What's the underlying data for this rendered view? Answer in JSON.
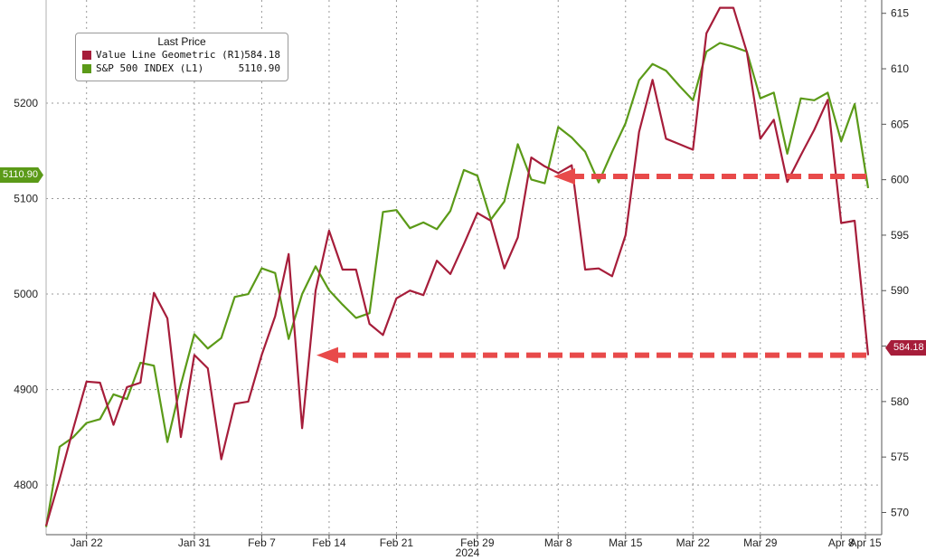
{
  "legend": {
    "title": "Last Price",
    "items": [
      {
        "label": "Value Line Geometric  (R1)",
        "value": "584.18",
        "color": "#a61d3a"
      },
      {
        "label": "S&P 500 INDEX  (L1)",
        "value": "5110.90",
        "color": "#5b9a18"
      }
    ]
  },
  "flags": {
    "left": "5110.90",
    "right": "584.18"
  },
  "chart_data": {
    "type": "line",
    "year_label": "2024",
    "x_tick_labels": [
      "Jan 22",
      "Jan 31",
      "Feb 7",
      "Feb 14",
      "Feb 21",
      "Feb 29",
      "Mar 8",
      "Mar 15",
      "Mar 22",
      "Mar 29",
      "Apr 8",
      "Apr 15"
    ],
    "left_axis": {
      "ticks": [
        4800,
        4900,
        5000,
        5100,
        5200
      ],
      "range": [
        4748,
        5308
      ]
    },
    "right_axis": {
      "ticks": [
        570,
        575,
        580,
        585,
        590,
        595,
        600,
        605,
        610,
        615
      ],
      "range": [
        568,
        616.2
      ]
    },
    "grid": true,
    "legend_position": "top-left",
    "series": [
      {
        "name": "S&P 500 INDEX (L1)",
        "axis": "left",
        "color": "#5b9a18",
        "values": [
          4756,
          4840,
          4850,
          4865,
          4869,
          4895,
          4890,
          4928,
          4925,
          4845,
          4905,
          4958,
          4943,
          4954,
          4997,
          5000,
          5027,
          5022,
          4953,
          5000,
          5029,
          5004,
          4989,
          4975,
          4980,
          5086,
          5088,
          5069,
          5075,
          5068,
          5087,
          5130,
          5124,
          5078,
          5097,
          5157,
          5120,
          5116,
          5175,
          5164,
          5149,
          5117,
          5149,
          5179,
          5224,
          5241,
          5234,
          5218,
          5203,
          5254,
          5263,
          5259,
          5254,
          5205,
          5211,
          5147,
          5205,
          5203,
          5211,
          5160,
          5199,
          5111
        ]
      },
      {
        "name": "Value Line Geometric (R1)",
        "axis": "right",
        "color": "#a61d3a",
        "values": [
          568.8,
          573.0,
          577.5,
          581.8,
          581.7,
          577.9,
          581.3,
          581.7,
          589.8,
          587.5,
          576.8,
          584.2,
          583.0,
          574.8,
          579.8,
          580.0,
          584.2,
          587.7,
          593.3,
          577.6,
          590.0,
          595.4,
          591.9,
          591.9,
          587.0,
          586.0,
          589.3,
          590.0,
          589.6,
          592.7,
          591.5,
          594.2,
          597.0,
          596.3,
          592.0,
          594.8,
          602.0,
          601.2,
          600.6,
          601.3,
          591.9,
          592.0,
          591.3,
          595.0,
          604.3,
          609.0,
          603.7,
          603.2,
          602.7,
          613.2,
          615.5,
          615.5,
          611.5,
          603.7,
          605.4,
          599.8,
          602.2,
          604.5,
          607.2,
          596.1,
          596.3,
          584.18
        ]
      }
    ]
  }
}
